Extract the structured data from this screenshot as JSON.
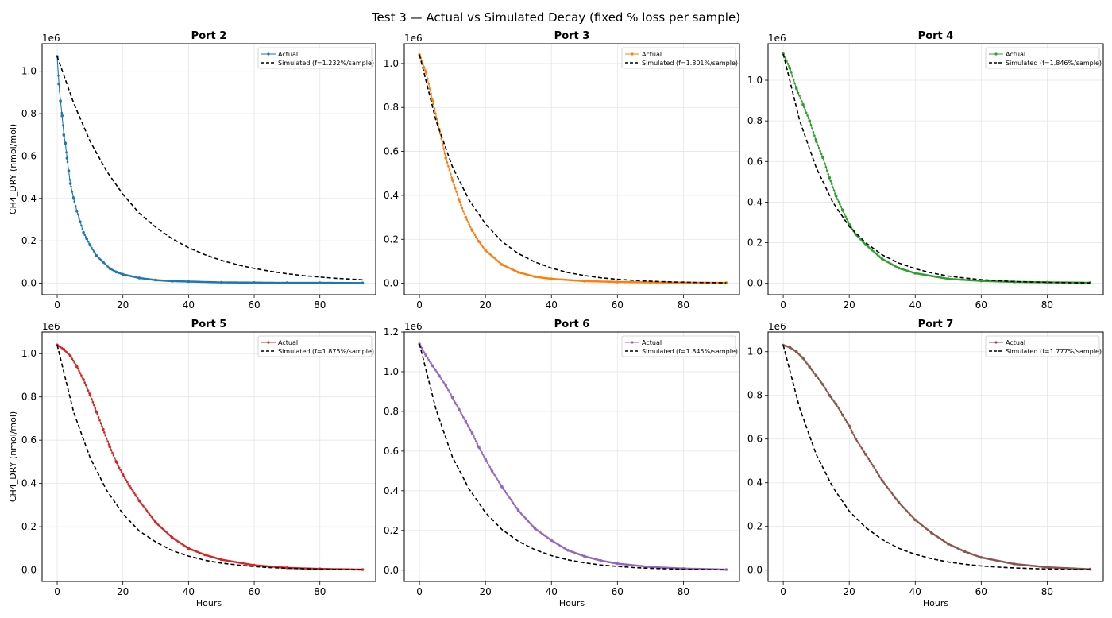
{
  "suptitle": "Test 3 — Actual vs Simulated Decay (fixed % loss per sample)",
  "chart_data": [
    {
      "type": "line",
      "title": "Port 2",
      "xlabel": "",
      "ylabel": "CH4_DRY (nmol/mol)",
      "offset_text": "1e6",
      "xlim": [
        -4.6,
        97
      ],
      "ylim": [
        -0.054,
        1.13
      ],
      "xticks": [
        0,
        20,
        40,
        60,
        80
      ],
      "yticks": [
        0.0,
        0.2,
        0.4,
        0.6,
        0.8,
        1.0
      ],
      "ytick_labels": [
        "0.0",
        "0.2",
        "0.4",
        "0.6",
        "0.8",
        "1.0"
      ],
      "grid": true,
      "legend_position": "upper right",
      "series": [
        {
          "name": "Actual",
          "color": "#1f77b4",
          "style": "line-with-markers",
          "x": [
            0,
            0.5,
            1,
            1.5,
            2,
            2.5,
            3,
            3.5,
            4,
            5,
            6,
            7,
            8,
            9,
            10,
            12,
            14,
            16,
            18,
            20,
            25,
            30,
            35,
            40,
            50,
            60,
            70,
            80,
            93
          ],
          "y": [
            1.07,
            0.94,
            0.86,
            0.79,
            0.7,
            0.66,
            0.59,
            0.53,
            0.47,
            0.4,
            0.34,
            0.29,
            0.24,
            0.21,
            0.18,
            0.13,
            0.1,
            0.07,
            0.053,
            0.042,
            0.025,
            0.015,
            0.01,
            0.008,
            0.004,
            0.003,
            0.002,
            0.002,
            0.001
          ]
        },
        {
          "name": "Simulated (f=1.232%/sample)",
          "color": "#000000",
          "style": "dashed",
          "x": [
            0,
            5,
            10,
            15,
            20,
            25,
            30,
            35,
            40,
            45,
            50,
            55,
            60,
            65,
            70,
            75,
            80,
            85,
            90,
            93
          ],
          "y": [
            1.07,
            0.85,
            0.67,
            0.53,
            0.42,
            0.33,
            0.265,
            0.21,
            0.168,
            0.135,
            0.108,
            0.087,
            0.07,
            0.056,
            0.045,
            0.036,
            0.029,
            0.023,
            0.019,
            0.016
          ]
        }
      ]
    },
    {
      "type": "line",
      "title": "Port 3",
      "xlabel": "",
      "ylabel": "",
      "offset_text": "1e6",
      "xlim": [
        -4.6,
        97
      ],
      "ylim": [
        -0.052,
        1.09
      ],
      "xticks": [
        0,
        20,
        40,
        60,
        80
      ],
      "yticks": [
        0.0,
        0.2,
        0.4,
        0.6,
        0.8,
        1.0
      ],
      "ytick_labels": [
        "0.0",
        "0.2",
        "0.4",
        "0.6",
        "0.8",
        "1.0"
      ],
      "grid": true,
      "legend_position": "upper right",
      "series": [
        {
          "name": "Actual",
          "color": "#ff7f0e",
          "style": "line-with-markers",
          "x": [
            0,
            2,
            4,
            6,
            8,
            10,
            12,
            14,
            16,
            18,
            20,
            25,
            30,
            35,
            40,
            50,
            60,
            70,
            80,
            93
          ],
          "y": [
            1.04,
            0.96,
            0.83,
            0.7,
            0.57,
            0.47,
            0.38,
            0.3,
            0.24,
            0.19,
            0.15,
            0.085,
            0.05,
            0.03,
            0.02,
            0.01,
            0.006,
            0.004,
            0.003,
            0.002
          ]
        },
        {
          "name": "Simulated (f=1.801%/sample)",
          "color": "#000000",
          "style": "dashed",
          "x": [
            0,
            5,
            10,
            15,
            20,
            25,
            30,
            35,
            40,
            45,
            50,
            55,
            60,
            65,
            70,
            75,
            80,
            85,
            90,
            93
          ],
          "y": [
            1.04,
            0.74,
            0.53,
            0.38,
            0.27,
            0.19,
            0.135,
            0.097,
            0.069,
            0.049,
            0.035,
            0.025,
            0.018,
            0.013,
            0.009,
            0.0065,
            0.0046,
            0.0033,
            0.0024,
            0.002
          ]
        }
      ]
    },
    {
      "type": "line",
      "title": "Port 4",
      "xlabel": "",
      "ylabel": "",
      "offset_text": "1e6",
      "xlim": [
        -4.6,
        97
      ],
      "ylim": [
        -0.056,
        1.18
      ],
      "xticks": [
        0,
        20,
        40,
        60,
        80
      ],
      "yticks": [
        0.0,
        0.2,
        0.4,
        0.6,
        0.8,
        1.0
      ],
      "ytick_labels": [
        "0.0",
        "0.2",
        "0.4",
        "0.6",
        "0.8",
        "1.0"
      ],
      "grid": true,
      "legend_position": "upper right",
      "series": [
        {
          "name": "Actual",
          "color": "#2ca02c",
          "style": "line-with-markers",
          "x": [
            0,
            2,
            4,
            6,
            8,
            10,
            12,
            14,
            16,
            18,
            20,
            22,
            25,
            30,
            35,
            40,
            50,
            60,
            70,
            80,
            93
          ],
          "y": [
            1.13,
            1.06,
            0.96,
            0.88,
            0.8,
            0.7,
            0.62,
            0.52,
            0.43,
            0.36,
            0.29,
            0.24,
            0.19,
            0.12,
            0.075,
            0.05,
            0.022,
            0.012,
            0.007,
            0.005,
            0.003
          ]
        },
        {
          "name": "Simulated (f=1.846%/sample)",
          "color": "#000000",
          "style": "dashed",
          "x": [
            0,
            5,
            10,
            15,
            20,
            25,
            30,
            35,
            40,
            45,
            50,
            55,
            60,
            65,
            70,
            75,
            80,
            85,
            90,
            93
          ],
          "y": [
            1.13,
            0.8,
            0.57,
            0.4,
            0.28,
            0.2,
            0.14,
            0.1,
            0.072,
            0.051,
            0.036,
            0.026,
            0.018,
            0.013,
            0.009,
            0.0066,
            0.0047,
            0.0033,
            0.0024,
            0.002
          ]
        }
      ]
    },
    {
      "type": "line",
      "title": "Port 5",
      "xlabel": "Hours",
      "ylabel": "CH4_DRY (nmol/mol)",
      "offset_text": "1e6",
      "xlim": [
        -4.6,
        97
      ],
      "ylim": [
        -0.053,
        1.1
      ],
      "xticks": [
        0,
        20,
        40,
        60,
        80
      ],
      "yticks": [
        0.0,
        0.2,
        0.4,
        0.6,
        0.8,
        1.0
      ],
      "ytick_labels": [
        "0.0",
        "0.2",
        "0.4",
        "0.6",
        "0.8",
        "1.0"
      ],
      "grid": true,
      "legend_position": "upper right",
      "series": [
        {
          "name": "Actual",
          "color": "#d62728",
          "style": "line-with-markers",
          "x": [
            0,
            2,
            4,
            6,
            8,
            10,
            12,
            14,
            16,
            18,
            20,
            22,
            25,
            30,
            35,
            40,
            45,
            50,
            60,
            70,
            80,
            93
          ],
          "y": [
            1.04,
            1.02,
            0.99,
            0.94,
            0.88,
            0.81,
            0.73,
            0.65,
            0.57,
            0.5,
            0.44,
            0.39,
            0.32,
            0.22,
            0.15,
            0.1,
            0.07,
            0.048,
            0.022,
            0.01,
            0.005,
            0.002
          ]
        },
        {
          "name": "Simulated (f=1.875%/sample)",
          "color": "#000000",
          "style": "dashed",
          "x": [
            0,
            5,
            10,
            15,
            20,
            25,
            30,
            35,
            40,
            45,
            50,
            55,
            60,
            65,
            70,
            75,
            80,
            85,
            90,
            93
          ],
          "y": [
            1.04,
            0.73,
            0.52,
            0.37,
            0.26,
            0.18,
            0.13,
            0.09,
            0.064,
            0.045,
            0.032,
            0.023,
            0.016,
            0.011,
            0.008,
            0.0056,
            0.004,
            0.0028,
            0.002,
            0.0017
          ]
        }
      ]
    },
    {
      "type": "line",
      "title": "Port 6",
      "xlabel": "Hours",
      "ylabel": "",
      "offset_text": "1e6",
      "xlim": [
        -4.6,
        97
      ],
      "ylim": [
        -0.057,
        1.2
      ],
      "xticks": [
        0,
        20,
        40,
        60,
        80
      ],
      "yticks": [
        0.0,
        0.2,
        0.4,
        0.6,
        0.8,
        1.0,
        1.2
      ],
      "ytick_labels": [
        "0.0",
        "0.2",
        "0.4",
        "0.6",
        "0.8",
        "1.0",
        "1.2"
      ],
      "grid": true,
      "legend_position": "upper right",
      "series": [
        {
          "name": "Actual",
          "color": "#9467bd",
          "style": "line-with-markers",
          "x": [
            0,
            2,
            4,
            6,
            8,
            10,
            12,
            14,
            16,
            18,
            20,
            22,
            25,
            30,
            35,
            40,
            45,
            50,
            55,
            60,
            70,
            80,
            93
          ],
          "y": [
            1.14,
            1.08,
            1.03,
            0.98,
            0.93,
            0.87,
            0.81,
            0.75,
            0.69,
            0.62,
            0.56,
            0.5,
            0.42,
            0.3,
            0.21,
            0.15,
            0.1,
            0.07,
            0.048,
            0.033,
            0.016,
            0.008,
            0.003
          ]
        },
        {
          "name": "Simulated (f=1.845%/sample)",
          "color": "#000000",
          "style": "dashed",
          "x": [
            0,
            5,
            10,
            15,
            20,
            25,
            30,
            35,
            40,
            45,
            50,
            55,
            60,
            65,
            70,
            75,
            80,
            85,
            90,
            93
          ],
          "y": [
            1.14,
            0.81,
            0.57,
            0.41,
            0.29,
            0.205,
            0.145,
            0.103,
            0.073,
            0.052,
            0.037,
            0.026,
            0.019,
            0.013,
            0.0094,
            0.0067,
            0.0047,
            0.0034,
            0.0024,
            0.002
          ]
        }
      ]
    },
    {
      "type": "line",
      "title": "Port 7",
      "xlabel": "Hours",
      "ylabel": "",
      "offset_text": "1e6",
      "xlim": [
        -4.6,
        97
      ],
      "ylim": [
        -0.052,
        1.09
      ],
      "xticks": [
        0,
        20,
        40,
        60,
        80
      ],
      "yticks": [
        0.0,
        0.2,
        0.4,
        0.6,
        0.8,
        1.0
      ],
      "ytick_labels": [
        "0.0",
        "0.2",
        "0.4",
        "0.6",
        "0.8",
        "1.0"
      ],
      "grid": true,
      "legend_position": "upper right",
      "series": [
        {
          "name": "Actual",
          "color": "#8c564b",
          "style": "line-with-markers",
          "x": [
            0,
            2,
            4,
            6,
            8,
            10,
            12,
            14,
            16,
            18,
            20,
            22,
            25,
            30,
            35,
            40,
            45,
            50,
            55,
            60,
            70,
            80,
            93
          ],
          "y": [
            1.03,
            1.02,
            1.0,
            0.97,
            0.93,
            0.89,
            0.85,
            0.8,
            0.76,
            0.71,
            0.66,
            0.6,
            0.53,
            0.41,
            0.31,
            0.23,
            0.17,
            0.12,
            0.085,
            0.058,
            0.028,
            0.013,
            0.004
          ]
        },
        {
          "name": "Simulated (f=1.777%/sample)",
          "color": "#000000",
          "style": "dashed",
          "x": [
            0,
            5,
            10,
            15,
            20,
            25,
            30,
            35,
            40,
            45,
            50,
            55,
            60,
            65,
            70,
            75,
            80,
            85,
            90,
            93
          ],
          "y": [
            1.03,
            0.74,
            0.53,
            0.38,
            0.27,
            0.195,
            0.14,
            0.1,
            0.072,
            0.052,
            0.037,
            0.027,
            0.019,
            0.014,
            0.01,
            0.0072,
            0.0052,
            0.0037,
            0.0027,
            0.0022
          ]
        }
      ]
    }
  ]
}
